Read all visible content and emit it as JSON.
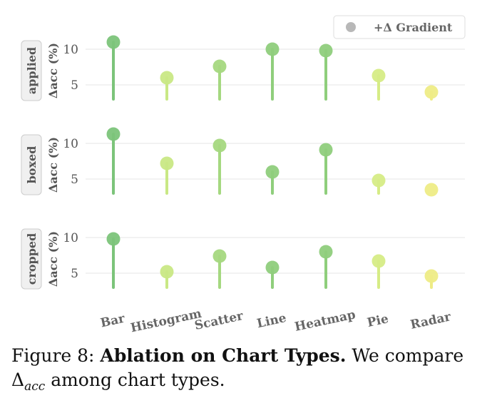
{
  "chart_data": {
    "type": "lollipop",
    "categories": [
      "Bar",
      "Histogram",
      "Scatter",
      "Line",
      "Heatmap",
      "Pie",
      "Radar"
    ],
    "ylabel": "Δacc (%)",
    "yticks": [
      5,
      10
    ],
    "ylim": [
      2,
      12
    ],
    "baseline": 3,
    "legend": {
      "label": "+Δ Gradient",
      "position": "top-right"
    },
    "panels": [
      {
        "name": "applied",
        "values": [
          11.0,
          6.0,
          7.6,
          10.0,
          9.8,
          6.3,
          4.0
        ]
      },
      {
        "name": "boxed",
        "values": [
          11.3,
          7.2,
          9.7,
          6.0,
          9.1,
          4.8,
          3.5
        ]
      },
      {
        "name": "cropped",
        "values": [
          9.8,
          5.2,
          7.4,
          5.8,
          8.0,
          6.7,
          4.6
        ]
      }
    ],
    "grid": "horizontal",
    "colors": [
      "#7cc47a",
      "#c9e885",
      "#a5d880",
      "#8fce7c",
      "#8fce7c",
      "#d6ec86",
      "#eeec86"
    ]
  },
  "caption": {
    "prefix": "Figure 8: ",
    "bold": "Ablation on Chart Types.",
    "rest": " We compare ",
    "delta": "Δ",
    "sub": "acc",
    "end": " among chart types."
  }
}
